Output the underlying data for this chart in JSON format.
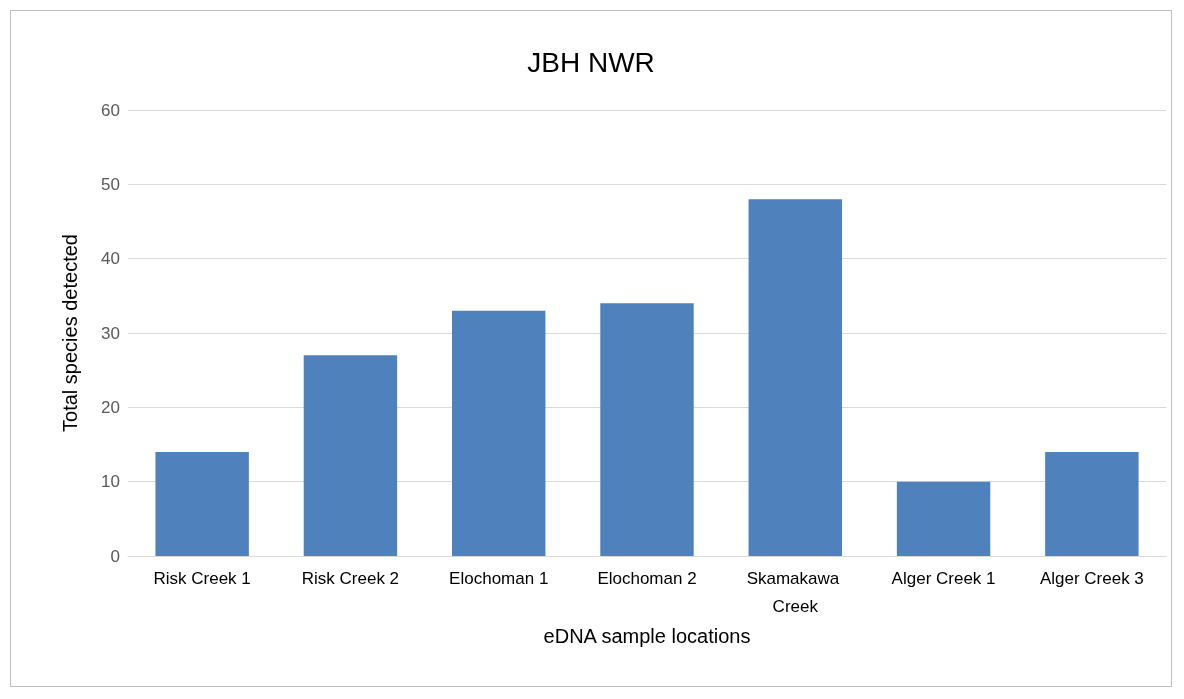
{
  "chart_data": {
    "type": "bar",
    "title": "JBH NWR",
    "xlabel": "eDNA sample locations",
    "ylabel": "Total species detected",
    "categories": [
      "Risk Creek 1",
      "Risk Creek 2",
      "Elochoman 1",
      "Elochoman 2",
      "Skamakawa Creek",
      "Alger Creek 1",
      "Alger Creek 3"
    ],
    "values": [
      14,
      27,
      33,
      34,
      48,
      10,
      14
    ],
    "color": "#4f81bd",
    "ylim": [
      0,
      60
    ],
    "yticks": [
      0,
      10,
      20,
      30,
      40,
      50,
      60
    ],
    "grid": "y"
  }
}
